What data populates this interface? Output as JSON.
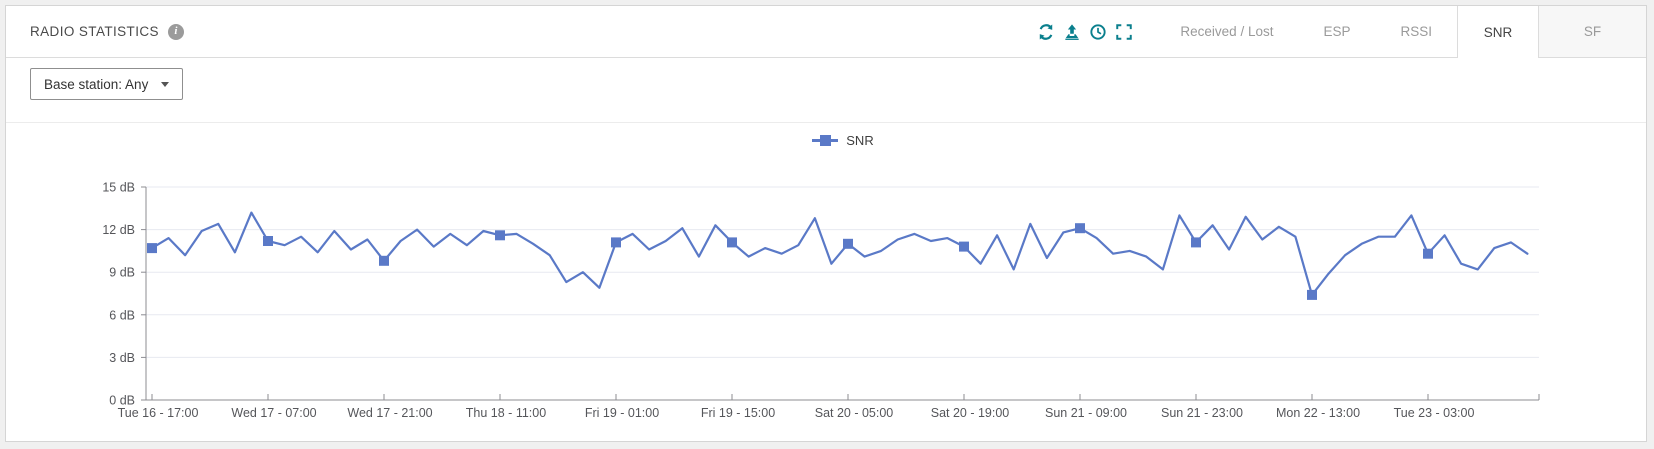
{
  "panel": {
    "title": "RADIO STATISTICS"
  },
  "toolbar": {
    "icons": [
      "refresh-icon",
      "export-icon",
      "clock-icon",
      "fullscreen-icon"
    ]
  },
  "tabs": [
    {
      "label": "Received / Lost",
      "active": false
    },
    {
      "label": "ESP",
      "active": false
    },
    {
      "label": "RSSI",
      "active": false
    },
    {
      "label": "SNR",
      "active": true
    },
    {
      "label": "SF",
      "active": false
    }
  ],
  "filter": {
    "base_station_label": "Base station: Any"
  },
  "legend": {
    "label": "SNR"
  },
  "colors": {
    "series": "#5a79c7",
    "icon_teal": "#0a7f8d",
    "grid": "#e7e9f0",
    "axis": "#8c8c92"
  },
  "chart_data": {
    "type": "line",
    "title": "",
    "legend_position": "top",
    "grid": "horizontal",
    "ylim": [
      0,
      15
    ],
    "y_ticks": [
      0,
      3,
      6,
      9,
      12,
      15
    ],
    "y_tick_unit": "dB",
    "x_tick_labels": [
      "Tue 16 - 17:00",
      "Wed 17 - 07:00",
      "Wed 17 - 21:00",
      "Thu 18 - 11:00",
      "Fri 19 - 01:00",
      "Fri 19 - 15:00",
      "Sat 20 - 05:00",
      "Sat 20 - 19:00",
      "Sun 21 - 09:00",
      "Sun 21 - 23:00",
      "Mon 22 - 13:00",
      "Tue 23 - 03:00"
    ],
    "points_per_tick": 7,
    "point_interval_hours": 2,
    "series": [
      {
        "name": "SNR",
        "color": "#5a79c7",
        "marker": "square",
        "marker_every": 7,
        "values": [
          10.7,
          11.4,
          10.2,
          11.9,
          12.4,
          10.4,
          13.2,
          11.2,
          10.9,
          11.5,
          10.4,
          11.9,
          10.6,
          11.3,
          9.8,
          11.2,
          12.0,
          10.8,
          11.7,
          10.9,
          11.9,
          11.6,
          11.7,
          11.0,
          10.2,
          8.3,
          9.0,
          7.9,
          11.1,
          11.7,
          10.6,
          11.2,
          12.1,
          10.1,
          12.3,
          11.1,
          10.1,
          10.7,
          10.3,
          10.9,
          12.8,
          9.6,
          11.0,
          10.1,
          10.5,
          11.3,
          11.7,
          11.2,
          11.4,
          10.8,
          9.6,
          11.6,
          9.2,
          12.4,
          10.0,
          11.8,
          12.1,
          11.4,
          10.3,
          10.5,
          10.1,
          9.2,
          13.0,
          11.1,
          12.3,
          10.6,
          12.9,
          11.3,
          12.2,
          11.5,
          7.4,
          8.9,
          10.2,
          11.0,
          11.5,
          11.5,
          13.0,
          10.3,
          11.6,
          9.6,
          9.2,
          10.7,
          11.1,
          10.3
        ]
      }
    ]
  }
}
